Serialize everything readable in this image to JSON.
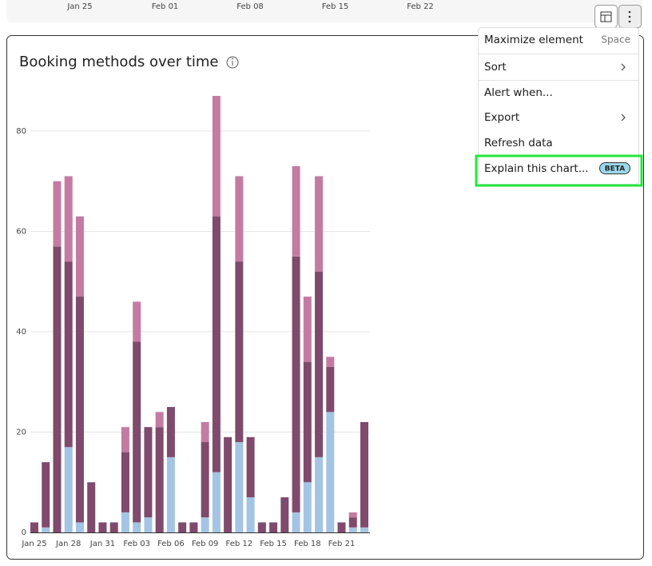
{
  "top_strip": {
    "labels": [
      "Jan 25",
      "Feb 01",
      "Feb 08",
      "Feb 15",
      "Feb 22"
    ]
  },
  "chart_data": {
    "type": "bar",
    "stacked": true,
    "title": "Booking methods over time",
    "categories": [
      "Jan 25",
      null,
      null,
      "Jan 28",
      null,
      null,
      "Jan 31",
      null,
      null,
      "Feb 03",
      null,
      null,
      "Feb 06",
      null,
      null,
      "Feb 09",
      null,
      null,
      "Feb 12",
      null,
      null,
      "Feb 15",
      null,
      null,
      "Feb 18",
      null,
      null,
      "Feb 21",
      null,
      null
    ],
    "series": [
      {
        "color": "#a4c4e4",
        "values": [
          0,
          1,
          0,
          17,
          2,
          0,
          0,
          0,
          4,
          2,
          3,
          0,
          15,
          0,
          0,
          3,
          12,
          0,
          18,
          7,
          0,
          0,
          0,
          4,
          10,
          15,
          24,
          0,
          1,
          1
        ]
      },
      {
        "color": "#7f4a6c",
        "values": [
          2,
          13,
          57,
          37,
          45,
          10,
          2,
          2,
          12,
          36,
          18,
          21,
          10,
          2,
          2,
          15,
          51,
          19,
          36,
          12,
          2,
          2,
          7,
          51,
          24,
          37,
          9,
          2,
          2,
          21
        ]
      },
      {
        "color": "#c47ba2",
        "values": [
          0,
          0,
          13,
          17,
          16,
          0,
          0,
          0,
          5,
          8,
          0,
          3,
          0,
          0,
          0,
          4,
          24,
          0,
          17,
          0,
          0,
          0,
          0,
          18,
          13,
          19,
          2,
          0,
          1,
          0
        ]
      }
    ],
    "ylim": [
      0,
      87
    ],
    "yticks": [
      0,
      20,
      40,
      60,
      80
    ],
    "grid": true
  },
  "menu": {
    "items": [
      {
        "label": "Maximize element",
        "shortcut": "Space"
      },
      {
        "label": "Sort"
      },
      {
        "label": "Alert when..."
      },
      {
        "label": "Export"
      },
      {
        "label": "Refresh data"
      },
      {
        "label": "Explain this chart...",
        "badge": "BETA"
      }
    ]
  }
}
